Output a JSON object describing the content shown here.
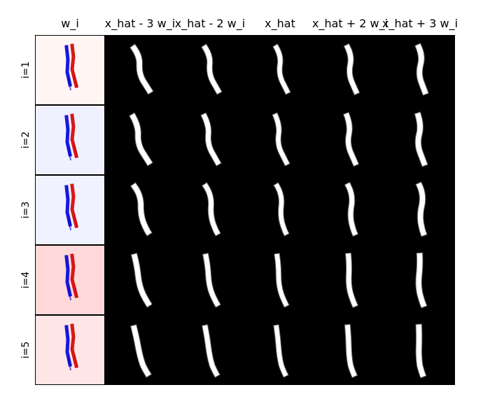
{
  "columns": [
    "w_i",
    "x_hat - 3 w_i",
    "x_hat - 2 w_i",
    "x_hat",
    "x_hat + 2 w_i",
    "x_hat + 3 w_i"
  ],
  "rows": [
    "i=1",
    "i=2",
    "i=3",
    "i=4",
    "i=5"
  ],
  "colors": {
    "image_background": "#000000",
    "digit_stroke": "#ffffff",
    "positive_weight": "#d40000",
    "negative_weight": "#0000d8"
  },
  "weight_backgrounds": [
    "#fff6f4",
    "#f0f1ff",
    "#f0f2ff",
    "#ffd9d9",
    "#ffe6e6"
  ]
}
